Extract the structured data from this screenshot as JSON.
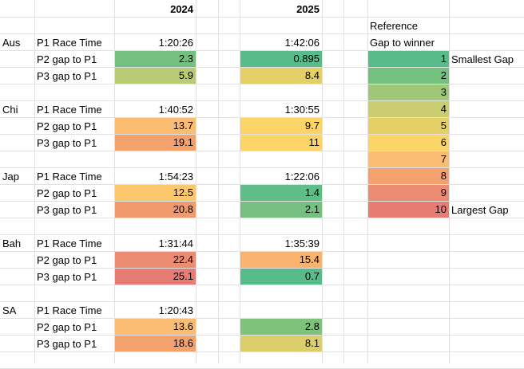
{
  "headers": {
    "year_2024": "2024",
    "year_2025": "2025"
  },
  "reference": {
    "title": "Reference",
    "subtitle": "Gap to winner",
    "smallest_label": "Smallest Gap",
    "largest_label": "Largest Gap",
    "scale": [
      {
        "value": "1",
        "color": "#57bb8a"
      },
      {
        "value": "2",
        "color": "#73c07f"
      },
      {
        "value": "3",
        "color": "#a0c778"
      },
      {
        "value": "4",
        "color": "#cbcd71"
      },
      {
        "value": "5",
        "color": "#e4d067"
      },
      {
        "value": "6",
        "color": "#fdd466"
      },
      {
        "value": "7",
        "color": "#fbbd73"
      },
      {
        "value": "8",
        "color": "#f3a16d"
      },
      {
        "value": "9",
        "color": "#ec8c72"
      },
      {
        "value": "10",
        "color": "#e67c73"
      }
    ]
  },
  "races": [
    {
      "name": "Aus",
      "rows": [
        {
          "label": "P1 Race Time",
          "v2024": "1:20:26",
          "c2024": "",
          "v2025": "1:42:06",
          "c2025": ""
        },
        {
          "label": "P2 gap to P1",
          "v2024": "2.3",
          "c2024": "#73c07f",
          "v2025": "0.895",
          "c2025": "#57bb8a"
        },
        {
          "label": "P3 gap to P1",
          "v2024": "5.9",
          "c2024": "#b9cb75",
          "v2025": "8.4",
          "c2025": "#e4d067"
        }
      ]
    },
    {
      "name": "Chi",
      "rows": [
        {
          "label": "P1 Race Time",
          "v2024": "1:40:52",
          "c2024": "",
          "v2025": "1:30:55",
          "c2025": ""
        },
        {
          "label": "P2 gap to P1",
          "v2024": "13.7",
          "c2024": "#fbbd73",
          "v2025": "9.7",
          "c2025": "#fdd466"
        },
        {
          "label": "P3 gap to P1",
          "v2024": "19.1",
          "c2024": "#f3a16d",
          "v2025": "11",
          "c2025": "#fdd466"
        }
      ]
    },
    {
      "name": "Jap",
      "rows": [
        {
          "label": "P1 Race Time",
          "v2024": "1:54:23",
          "c2024": "",
          "v2025": "1:22:06",
          "c2025": ""
        },
        {
          "label": "P2 gap to P1",
          "v2024": "12.5",
          "c2024": "#fdc76c",
          "v2025": "1.4",
          "c2025": "#5fbd88"
        },
        {
          "label": "P3 gap to P1",
          "v2024": "20.8",
          "c2024": "#f09a6e",
          "v2025": "2.1",
          "c2025": "#73c07f"
        }
      ]
    },
    {
      "name": "Bah",
      "rows": [
        {
          "label": "P1 Race Time",
          "v2024": "1:31:44",
          "c2024": "",
          "v2025": "1:35:39",
          "c2025": ""
        },
        {
          "label": "P2 gap to P1",
          "v2024": "22.4",
          "c2024": "#ec8c72",
          "v2025": "15.4",
          "c2025": "#f8b46f"
        },
        {
          "label": "P3 gap to P1",
          "v2024": "25.1",
          "c2024": "#e67c73",
          "v2025": "0.7",
          "c2025": "#57bb8a"
        }
      ]
    },
    {
      "name": "SA",
      "rows": [
        {
          "label": "P1 Race Time",
          "v2024": "1:20:43",
          "c2024": "",
          "v2025": "",
          "c2025": ""
        },
        {
          "label": "P2 gap to P1",
          "v2024": "13.6",
          "c2024": "#fbbd73",
          "v2025": "2.8",
          "c2025": "#7fc27b"
        },
        {
          "label": "P3 gap to P1",
          "v2024": "18.6",
          "c2024": "#f3a16d",
          "v2025": "8.1",
          "c2025": "#dccf6b"
        }
      ]
    }
  ]
}
